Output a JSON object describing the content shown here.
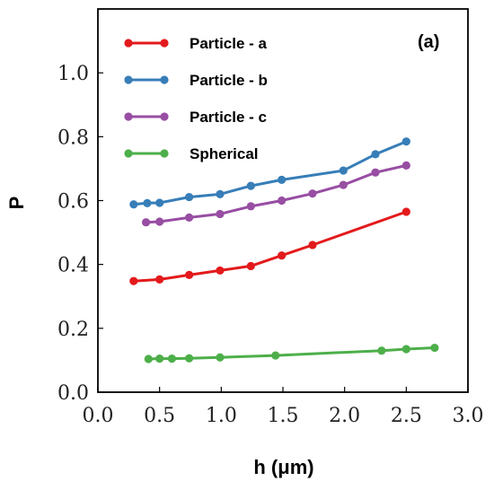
{
  "chart_data": {
    "type": "line",
    "panel_label": "(a)",
    "xlabel": "h (μm)",
    "ylabel": "P",
    "xlim": [
      0.0,
      3.0
    ],
    "ylim": [
      0.0,
      1.2
    ],
    "xticks": [
      0.0,
      0.5,
      1.0,
      1.5,
      2.0,
      2.5,
      3.0
    ],
    "xtick_labels": [
      "0.0",
      "0.5",
      "1.0",
      "1.5",
      "2.0",
      "2.5",
      "3.0"
    ],
    "yticks": [
      0.0,
      0.2,
      0.4,
      0.6,
      0.8,
      1.0
    ],
    "ytick_labels": [
      "0.0",
      "0.2",
      "0.4",
      "0.6",
      "0.8",
      "1.0"
    ],
    "grid": false,
    "legend_position": "top-left",
    "series": [
      {
        "name": "Particle - a",
        "color": "#e31a1c",
        "x": [
          0.29,
          0.5,
          0.74,
          0.99,
          1.24,
          1.49,
          1.74,
          2.5
        ],
        "y": [
          0.348,
          0.353,
          0.367,
          0.381,
          0.395,
          0.428,
          0.461,
          0.565
        ]
      },
      {
        "name": "Particle - b",
        "color": "#377eb8",
        "x": [
          0.29,
          0.4,
          0.5,
          0.74,
          0.99,
          1.24,
          1.49,
          1.99,
          2.25,
          2.5
        ],
        "y": [
          0.588,
          0.592,
          0.593,
          0.611,
          0.62,
          0.646,
          0.665,
          0.694,
          0.745,
          0.785
        ]
      },
      {
        "name": "Particle - c",
        "color": "#984ea3",
        "x": [
          0.39,
          0.5,
          0.74,
          0.99,
          1.24,
          1.49,
          1.74,
          1.99,
          2.25,
          2.5
        ],
        "y": [
          0.532,
          0.534,
          0.547,
          0.558,
          0.582,
          0.6,
          0.622,
          0.649,
          0.688,
          0.71
        ]
      },
      {
        "name": "Spherical",
        "color": "#4daf4a",
        "x": [
          0.41,
          0.5,
          0.6,
          0.74,
          0.99,
          1.44,
          2.3,
          2.5,
          2.73
        ],
        "y": [
          0.104,
          0.105,
          0.105,
          0.106,
          0.109,
          0.115,
          0.13,
          0.135,
          0.139
        ]
      }
    ]
  }
}
